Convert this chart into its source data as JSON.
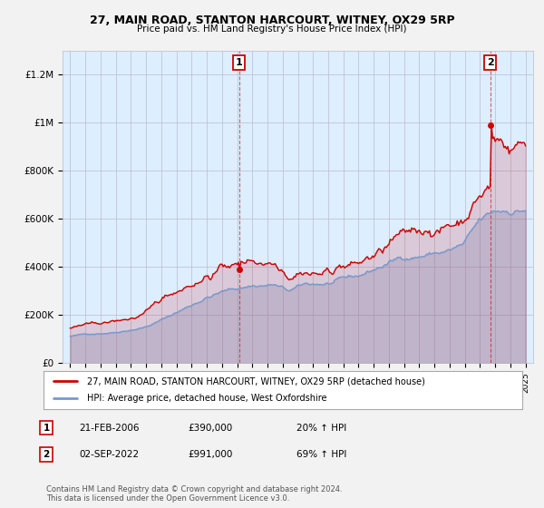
{
  "title": "27, MAIN ROAD, STANTON HARCOURT, WITNEY, OX29 5RP",
  "subtitle": "Price paid vs. HM Land Registry's House Price Index (HPI)",
  "ylim": [
    0,
    1300000
  ],
  "yticks": [
    0,
    200000,
    400000,
    600000,
    800000,
    1000000,
    1200000
  ],
  "ytick_labels": [
    "£0",
    "£200K",
    "£400K",
    "£600K",
    "£800K",
    "£1M",
    "£1.2M"
  ],
  "bg_color": "#f2f2f2",
  "plot_bg_color": "#ddeeff",
  "grid_color": "#bbbbcc",
  "red_color": "#cc0000",
  "blue_color": "#7799cc",
  "sale1_x": 2006.13,
  "sale1_y": 390000,
  "sale2_x": 2022.67,
  "sale2_y": 991000,
  "annotation1_date": "21-FEB-2006",
  "annotation1_price": "£390,000",
  "annotation1_hpi": "20% ↑ HPI",
  "annotation2_date": "02-SEP-2022",
  "annotation2_price": "£991,000",
  "annotation2_hpi": "69% ↑ HPI",
  "legend_line1": "27, MAIN ROAD, STANTON HARCOURT, WITNEY, OX29 5RP (detached house)",
  "legend_line2": "HPI: Average price, detached house, West Oxfordshire",
  "footer": "Contains HM Land Registry data © Crown copyright and database right 2024.\nThis data is licensed under the Open Government Licence v3.0.",
  "xmin": 1994.5,
  "xmax": 2025.5
}
